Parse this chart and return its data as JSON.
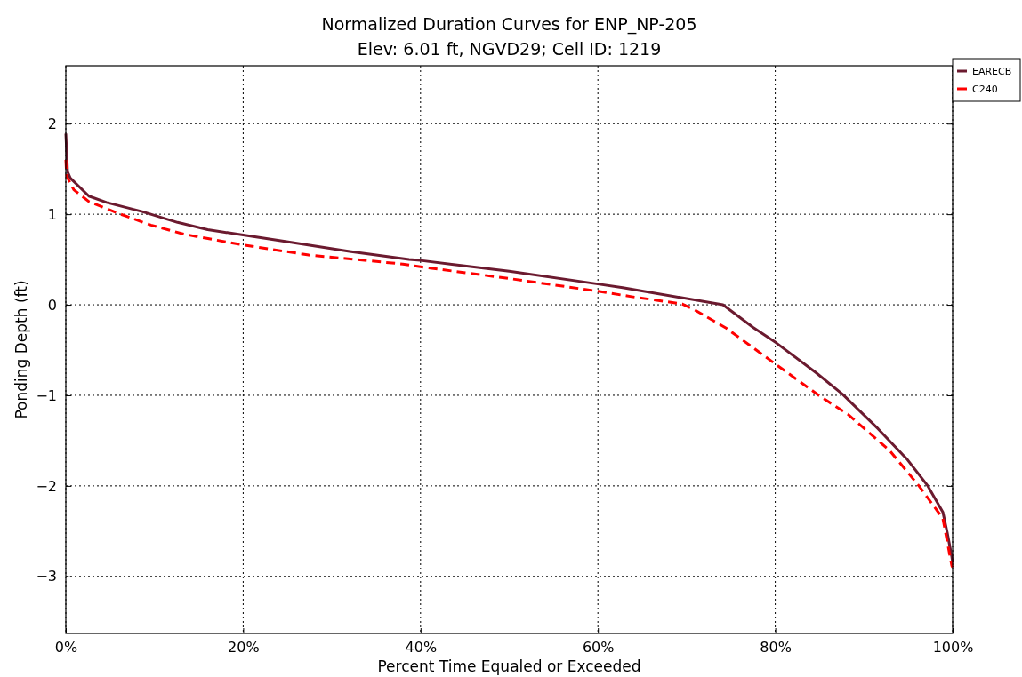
{
  "chart_data": {
    "type": "line",
    "title": "Normalized Duration Curves for ENP_NP-205",
    "subtitle": "Elev: 6.01 ft, NGVD29; Cell ID: 1219",
    "xlabel": "Percent Time Equaled or Exceeded",
    "ylabel": "Ponding Depth (ft)",
    "xlim": [
      0,
      100
    ],
    "ylim": [
      -3.63,
      2.64
    ],
    "xticks": [
      {
        "value": 0,
        "label": "0%"
      },
      {
        "value": 20,
        "label": "20%"
      },
      {
        "value": 40,
        "label": "40%"
      },
      {
        "value": 60,
        "label": "60%"
      },
      {
        "value": 80,
        "label": "80%"
      },
      {
        "value": 100,
        "label": "100%"
      }
    ],
    "yticks": [
      {
        "value": -3,
        "label": "−3"
      },
      {
        "value": -2,
        "label": "−2"
      },
      {
        "value": -1,
        "label": "−1"
      },
      0,
      1,
      2
    ],
    "grid": true,
    "legend": "top right",
    "series": [
      {
        "name": "EARECB",
        "color": "#6b1a2f",
        "line_style": "solid",
        "x": [
          0,
          0.2,
          0.5,
          2.6,
          4.6,
          8.6,
          12.6,
          16,
          20,
          25.4,
          32,
          38.7,
          40,
          50,
          60,
          62.8,
          74.1,
          77.5,
          80.1,
          84.6,
          87.6,
          91.6,
          94.9,
          97.2,
          98.9,
          99.4,
          99.9,
          100
        ],
        "values": [
          1.89,
          1.47,
          1.4,
          1.2,
          1.13,
          1.03,
          0.91,
          0.83,
          0.77,
          0.69,
          0.59,
          0.5,
          0.49,
          0.37,
          0.23,
          0.19,
          0,
          -0.25,
          -0.42,
          -0.75,
          -0.99,
          -1.37,
          -1.71,
          -2.0,
          -2.29,
          -2.52,
          -2.78,
          -2.85
        ]
      },
      {
        "name": "C240",
        "color": "#ff0000",
        "line_style": "dashed",
        "x": [
          0,
          0.1,
          0.9,
          2.6,
          5.9,
          9.6,
          13.3,
          20,
          27.4,
          38,
          40,
          50,
          60,
          63.8,
          69.5,
          70.8,
          74.5,
          80.1,
          84.9,
          88.2,
          92.9,
          96.2,
          98.9,
          99.9,
          100
        ],
        "values": [
          1.6,
          1.42,
          1.27,
          1.14,
          1.01,
          0.88,
          0.78,
          0.66,
          0.55,
          0.45,
          0.42,
          0.29,
          0.15,
          0.09,
          0.01,
          -0.05,
          -0.26,
          -0.66,
          -1.0,
          -1.21,
          -1.61,
          -2.0,
          -2.36,
          -2.88,
          -2.9
        ]
      }
    ]
  }
}
